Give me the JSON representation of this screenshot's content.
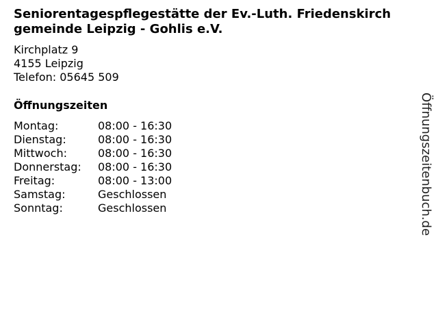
{
  "business": {
    "name_line1": "Seniorentagespflegestätte der Ev.-Luth. Friedenskirch",
    "name_line2": "gemeinde Leipzig - Gohlis e.V.",
    "street": "Kirchplatz 9",
    "city": "4155 Leipzig",
    "phone": "Telefon: 05645 509"
  },
  "hours": {
    "heading": "Öffnungszeiten",
    "rows": [
      {
        "day": "Montag:",
        "time": "08:00 - 16:30"
      },
      {
        "day": "Dienstag:",
        "time": "08:00 - 16:30"
      },
      {
        "day": "Mittwoch:",
        "time": "08:00 - 16:30"
      },
      {
        "day": "Donnerstag:",
        "time": "08:00 - 16:30"
      },
      {
        "day": "Freitag:",
        "time": "08:00 - 13:00"
      },
      {
        "day": "Samstag:",
        "time": "Geschlossen"
      },
      {
        "day": "Sonntag:",
        "time": "Geschlossen"
      }
    ]
  },
  "watermark": "Öffnungszeitenbuch.de"
}
